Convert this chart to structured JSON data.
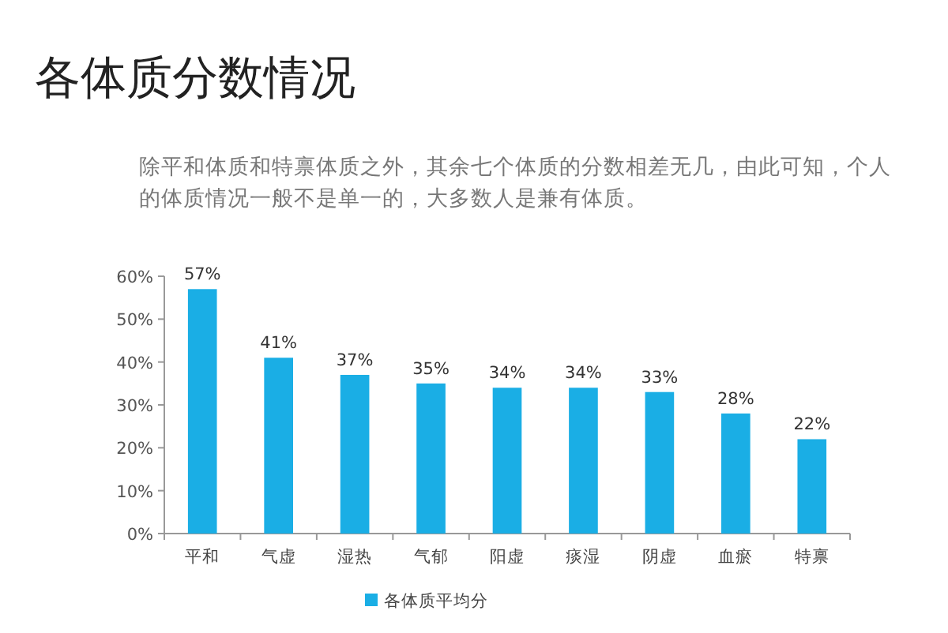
{
  "chart_data": {
    "type": "bar",
    "title": "各体质分数情况",
    "subtitle": "除平和体质和特禀体质之外，其余七个体质的分数相差无几，由此可知，个人的体质情况一般不是单一的，大多数人是兼有体质。",
    "categories": [
      "平和",
      "气虚",
      "湿热",
      "气郁",
      "阳虚",
      "痰湿",
      "阴虚",
      "血瘀",
      "特禀"
    ],
    "series": [
      {
        "name": "各体质平均分",
        "color": "#1aaee5",
        "values": [
          57,
          41,
          37,
          35,
          34,
          34,
          33,
          28,
          22
        ],
        "value_labels": [
          "57%",
          "41%",
          "37%",
          "35%",
          "34%",
          "34%",
          "33%",
          "28%",
          "22%"
        ]
      }
    ],
    "ylim": [
      0,
      60
    ],
    "yticks": [
      {
        "value": 0,
        "label": "0%"
      },
      {
        "value": 10,
        "label": "10%"
      },
      {
        "value": 20,
        "label": "20%"
      },
      {
        "value": 30,
        "label": "30%"
      },
      {
        "value": 40,
        "label": "40%"
      },
      {
        "value": 50,
        "label": "50%"
      },
      {
        "value": 60,
        "label": "60%"
      }
    ],
    "grid": false,
    "legend": "bottom"
  }
}
